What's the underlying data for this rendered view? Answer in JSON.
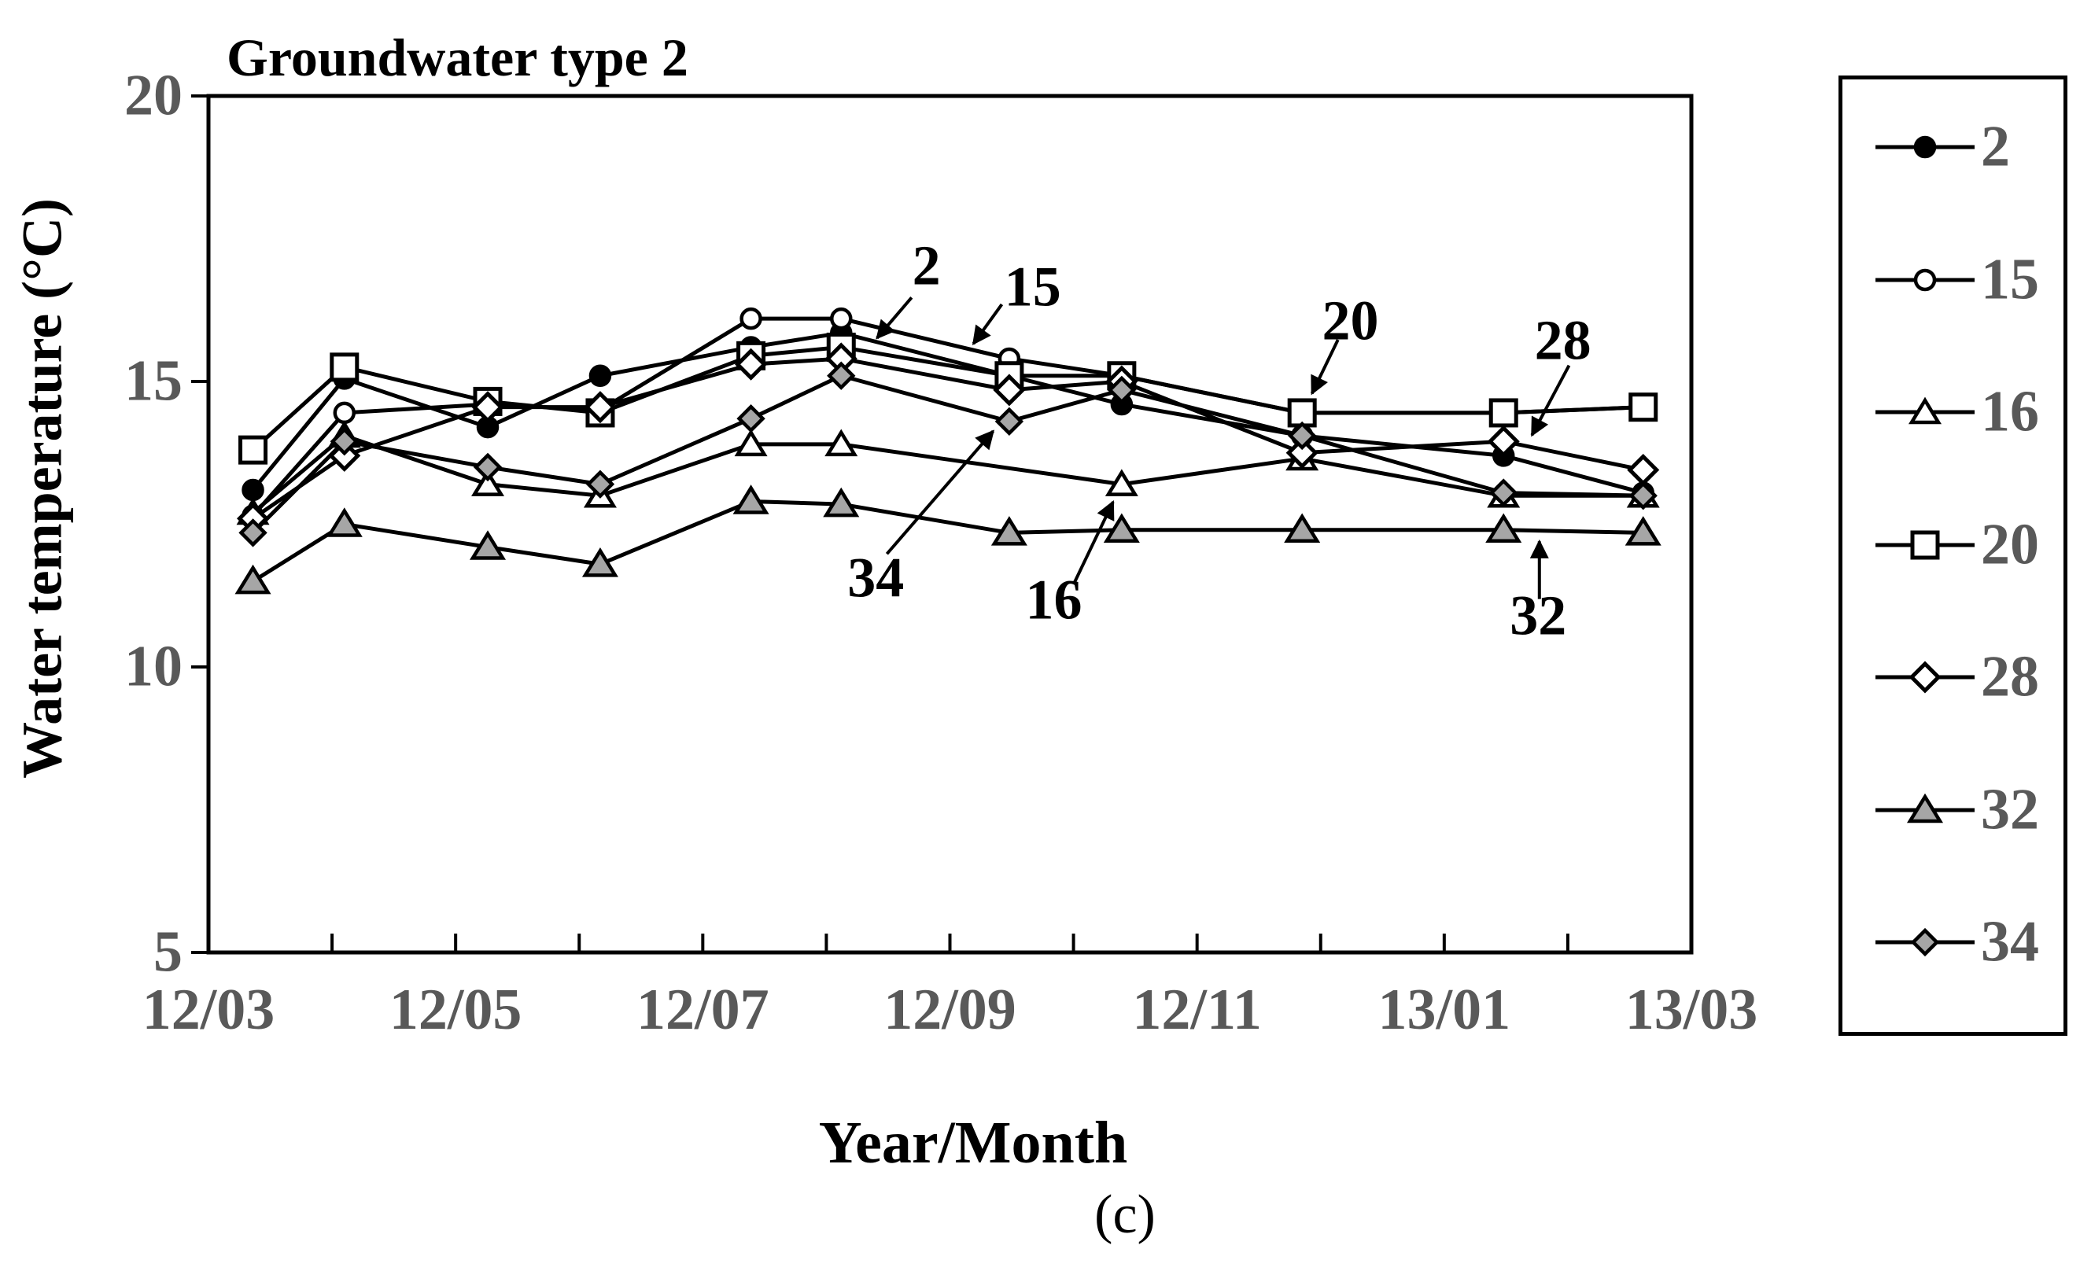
{
  "page": {
    "caption": "(c)"
  },
  "chart_data": {
    "type": "line",
    "title": "Groundwater type 2",
    "xlabel": "Year/Month",
    "ylabel": "Water temperature (°C)",
    "x_axis": {
      "tick_labels": [
        "12/03",
        "12/05",
        "12/07",
        "12/09",
        "12/11",
        "13/01",
        "13/03"
      ],
      "tick_months": [
        0,
        2,
        4,
        6,
        8,
        10,
        12
      ],
      "minor_tick_months": [
        1,
        2,
        3,
        4,
        5,
        6,
        7,
        8,
        9,
        10,
        11
      ],
      "range_months": 12
    },
    "y_axis": {
      "ticks": [
        20,
        15,
        10,
        5
      ],
      "ylim": [
        5,
        20
      ]
    },
    "x_months": [
      0.36,
      1.1,
      2.26,
      3.17,
      4.39,
      5.12,
      6.48,
      7.39,
      8.85,
      10.48,
      11.61
    ],
    "series": [
      {
        "name": "2",
        "marker": "circle",
        "fill": "black",
        "values": [
          13.1,
          15.05,
          14.2,
          15.1,
          15.6,
          15.85,
          15.1,
          14.6,
          14.05,
          13.7,
          13.05
        ]
      },
      {
        "name": "15",
        "marker": "circle",
        "fill": "white",
        "values": [
          12.65,
          14.45,
          14.6,
          14.5,
          16.1,
          16.1,
          15.4,
          15.1,
          14.45,
          14.45,
          14.55
        ]
      },
      {
        "name": "16",
        "marker": "triangle",
        "fill": "white",
        "values": [
          12.7,
          14.05,
          13.2,
          13.0,
          13.9,
          13.9,
          null,
          13.2,
          13.65,
          13.0,
          13.0
        ]
      },
      {
        "name": "20",
        "marker": "square",
        "fill": "white",
        "values": [
          13.8,
          15.25,
          14.65,
          14.45,
          15.45,
          15.6,
          15.1,
          15.1,
          14.45,
          14.45,
          14.55
        ]
      },
      {
        "name": "28",
        "marker": "diamond",
        "fill": "white",
        "values": [
          12.6,
          13.7,
          14.55,
          14.55,
          15.3,
          15.4,
          14.85,
          15.0,
          13.75,
          13.95,
          13.45
        ]
      },
      {
        "name": "32",
        "marker": "triangle",
        "fill": "gray",
        "values": [
          11.5,
          12.5,
          12.1,
          11.8,
          12.9,
          12.85,
          12.35,
          12.4,
          12.4,
          12.4,
          12.35
        ]
      },
      {
        "name": "34",
        "marker": "diamond",
        "fill": "gray",
        "values": [
          12.35,
          13.95,
          13.5,
          13.2,
          14.35,
          15.1,
          14.3,
          14.85,
          14.05,
          13.05,
          13.0
        ]
      }
    ],
    "legend": {
      "position": "right",
      "entries": [
        "2",
        "15",
        "16",
        "20",
        "28",
        "32",
        "34"
      ]
    },
    "annotations": [
      {
        "label": "2",
        "text_at": {
          "month": 5.81,
          "temp": 17.03
        },
        "arrow_from": {
          "month": 5.69,
          "temp": 16.47
        },
        "arrow_to": {
          "month": 5.41,
          "temp": 15.76
        }
      },
      {
        "label": "15",
        "text_at": {
          "month": 6.67,
          "temp": 16.65
        },
        "arrow_from": {
          "month": 6.42,
          "temp": 16.35
        },
        "arrow_to": {
          "month": 6.19,
          "temp": 15.66
        }
      },
      {
        "label": "20",
        "text_at": {
          "month": 9.24,
          "temp": 16.06
        },
        "arrow_from": {
          "month": 9.14,
          "temp": 15.73
        },
        "arrow_to": {
          "month": 8.93,
          "temp": 14.79
        }
      },
      {
        "label": "28",
        "text_at": {
          "month": 10.96,
          "temp": 15.72
        },
        "arrow_from": {
          "month": 11.01,
          "temp": 15.28
        },
        "arrow_to": {
          "month": 10.71,
          "temp": 14.06
        }
      },
      {
        "label": "34",
        "text_at": {
          "month": 5.4,
          "temp": 11.56
        },
        "arrow_from": {
          "month": 5.49,
          "temp": 11.98
        },
        "arrow_to": {
          "month": 6.35,
          "temp": 14.13
        }
      },
      {
        "label": "16",
        "text_at": {
          "month": 6.84,
          "temp": 11.17
        },
        "arrow_from": {
          "month": 7.01,
          "temp": 11.49
        },
        "arrow_to": {
          "month": 7.32,
          "temp": 12.89
        }
      },
      {
        "label": "32",
        "text_at": {
          "month": 10.76,
          "temp": 10.9
        },
        "arrow_from": {
          "month": 10.77,
          "temp": 11.19
        },
        "arrow_to": {
          "month": 10.77,
          "temp": 12.2
        }
      }
    ],
    "colors": {
      "line": "#000000",
      "axis": "#000000",
      "tick_label": "#595959",
      "gray_marker_fill": "#a6a6a6",
      "background": "#ffffff"
    }
  }
}
